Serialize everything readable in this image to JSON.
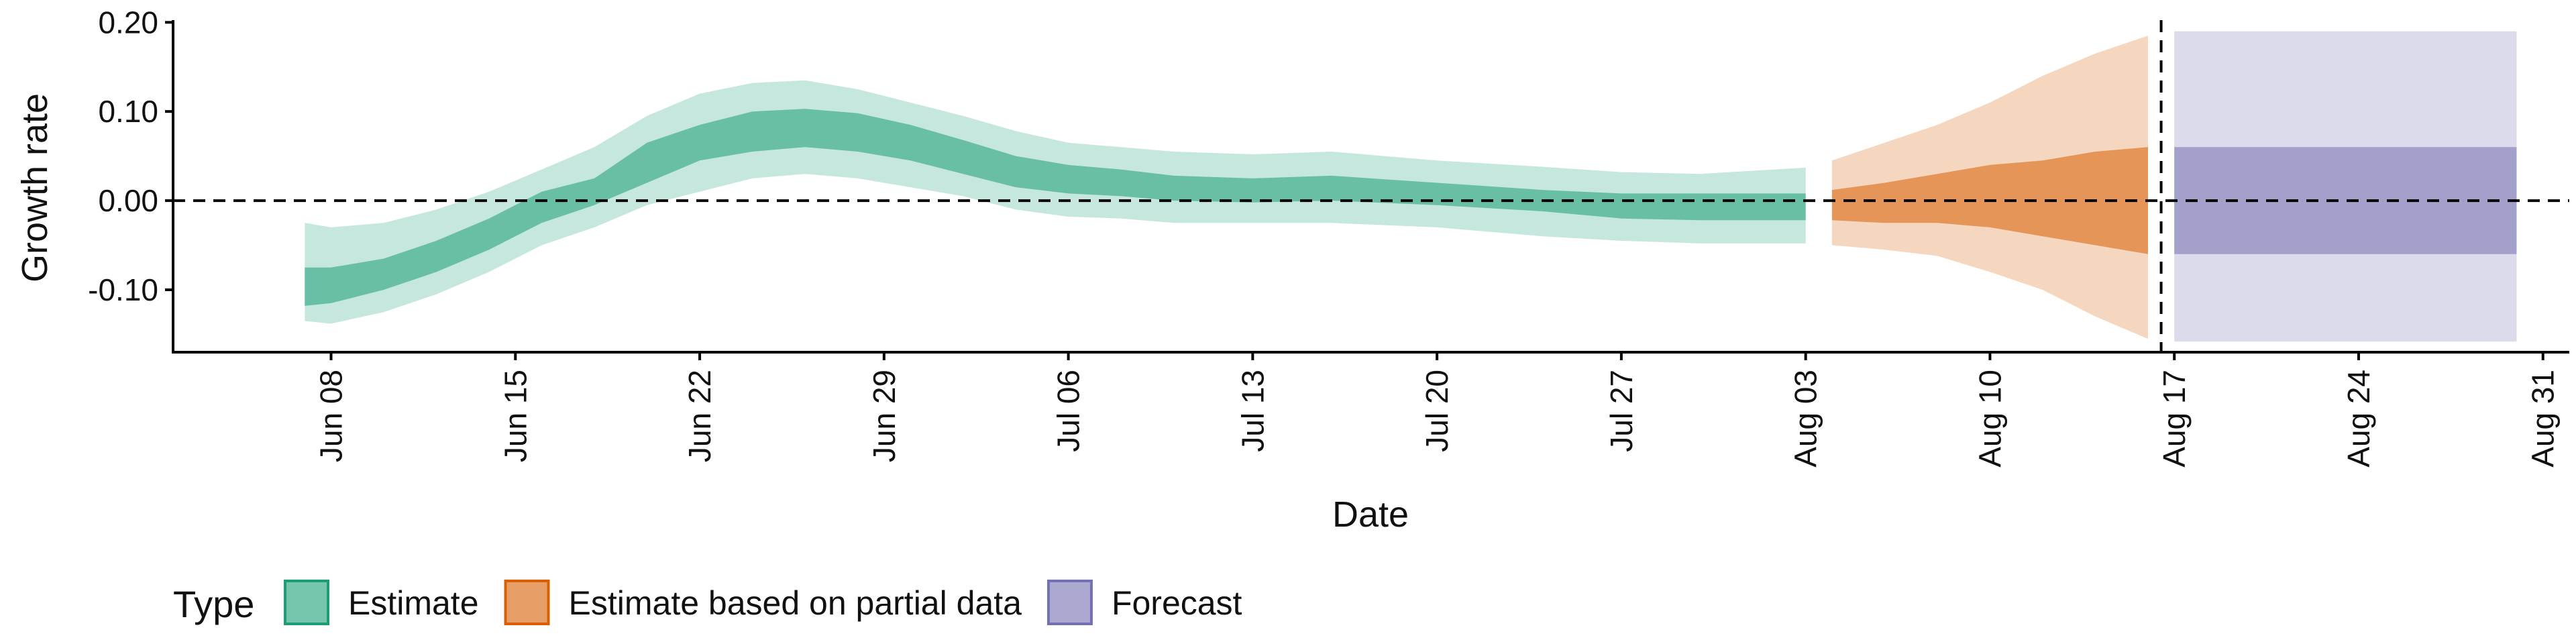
{
  "chart_data": {
    "type": "area",
    "xlabel": "Date",
    "ylabel": "Growth rate",
    "ylim": [
      -0.17,
      0.21
    ],
    "yticks": [
      -0.1,
      0.0,
      0.1,
      0.2
    ],
    "ytick_labels": [
      "-0.10",
      "0.00",
      "0.10",
      "0.20"
    ],
    "xticks": [
      "2020-06-08",
      "2020-06-15",
      "2020-06-22",
      "2020-06-29",
      "2020-07-06",
      "2020-07-13",
      "2020-07-20",
      "2020-07-27",
      "2020-08-03",
      "2020-08-10",
      "2020-08-17",
      "2020-08-24",
      "2020-08-31"
    ],
    "xtick_labels": [
      "Jun 08",
      "Jun 15",
      "Jun 22",
      "Jun 29",
      "Jul 06",
      "Jul 13",
      "Jul 20",
      "Jul 27",
      "Aug 03",
      "Aug 10",
      "Aug 17",
      "Aug 24",
      "Aug 31"
    ],
    "xlim": [
      "2020-06-02",
      "2020-09-01"
    ],
    "reference_hline": 0.0,
    "reference_vline": "2020-08-16",
    "grid": false,
    "legend": {
      "title": "Type",
      "position": "bottom-left",
      "entries": [
        {
          "label": "Estimate",
          "color": "#1b9e77"
        },
        {
          "label": "Estimate based on partial data",
          "color": "#d95f02"
        },
        {
          "label": "Forecast",
          "color": "#7570b3"
        }
      ]
    },
    "series": [
      {
        "name": "Estimate",
        "color": "#1b9e77",
        "points": [
          {
            "date": "2020-06-07",
            "lo90": -0.135,
            "lo50": -0.118,
            "hi50": -0.075,
            "hi90": -0.025
          },
          {
            "date": "2020-06-08",
            "lo90": -0.138,
            "lo50": -0.115,
            "hi50": -0.075,
            "hi90": -0.03
          },
          {
            "date": "2020-06-10",
            "lo90": -0.125,
            "lo50": -0.1,
            "hi50": -0.065,
            "hi90": -0.025
          },
          {
            "date": "2020-06-12",
            "lo90": -0.105,
            "lo50": -0.08,
            "hi50": -0.045,
            "hi90": -0.01
          },
          {
            "date": "2020-06-14",
            "lo90": -0.08,
            "lo50": -0.055,
            "hi50": -0.02,
            "hi90": 0.01
          },
          {
            "date": "2020-06-16",
            "lo90": -0.05,
            "lo50": -0.025,
            "hi50": 0.01,
            "hi90": 0.035
          },
          {
            "date": "2020-06-18",
            "lo90": -0.03,
            "lo50": -0.005,
            "hi50": 0.025,
            "hi90": 0.06
          },
          {
            "date": "2020-06-20",
            "lo90": -0.005,
            "lo50": 0.02,
            "hi50": 0.065,
            "hi90": 0.095
          },
          {
            "date": "2020-06-22",
            "lo90": 0.01,
            "lo50": 0.045,
            "hi50": 0.085,
            "hi90": 0.12
          },
          {
            "date": "2020-06-24",
            "lo90": 0.025,
            "lo50": 0.055,
            "hi50": 0.1,
            "hi90": 0.132
          },
          {
            "date": "2020-06-26",
            "lo90": 0.03,
            "lo50": 0.06,
            "hi50": 0.103,
            "hi90": 0.135
          },
          {
            "date": "2020-06-28",
            "lo90": 0.025,
            "lo50": 0.055,
            "hi50": 0.098,
            "hi90": 0.125
          },
          {
            "date": "2020-06-30",
            "lo90": 0.015,
            "lo50": 0.045,
            "hi50": 0.085,
            "hi90": 0.11
          },
          {
            "date": "2020-07-02",
            "lo90": 0.005,
            "lo50": 0.03,
            "hi50": 0.068,
            "hi90": 0.095
          },
          {
            "date": "2020-07-04",
            "lo90": -0.01,
            "lo50": 0.015,
            "hi50": 0.05,
            "hi90": 0.078
          },
          {
            "date": "2020-07-06",
            "lo90": -0.018,
            "lo50": 0.008,
            "hi50": 0.04,
            "hi90": 0.065
          },
          {
            "date": "2020-07-08",
            "lo90": -0.02,
            "lo50": 0.005,
            "hi50": 0.035,
            "hi90": 0.06
          },
          {
            "date": "2020-07-10",
            "lo90": -0.025,
            "lo50": 0.0,
            "hi50": 0.028,
            "hi90": 0.055
          },
          {
            "date": "2020-07-13",
            "lo90": -0.025,
            "lo50": -0.002,
            "hi50": 0.025,
            "hi90": 0.052
          },
          {
            "date": "2020-07-16",
            "lo90": -0.025,
            "lo50": 0.0,
            "hi50": 0.028,
            "hi90": 0.055
          },
          {
            "date": "2020-07-20",
            "lo90": -0.03,
            "lo50": -0.005,
            "hi50": 0.02,
            "hi90": 0.045
          },
          {
            "date": "2020-07-24",
            "lo90": -0.04,
            "lo50": -0.012,
            "hi50": 0.012,
            "hi90": 0.038
          },
          {
            "date": "2020-07-27",
            "lo90": -0.045,
            "lo50": -0.02,
            "hi50": 0.008,
            "hi90": 0.032
          },
          {
            "date": "2020-07-30",
            "lo90": -0.048,
            "lo50": -0.022,
            "hi50": 0.008,
            "hi90": 0.03
          },
          {
            "date": "2020-08-03",
            "lo90": -0.048,
            "lo50": -0.022,
            "hi50": 0.008,
            "hi90": 0.037
          }
        ]
      },
      {
        "name": "Estimate based on partial data",
        "color": "#d95f02",
        "points": [
          {
            "date": "2020-08-04",
            "lo90": -0.05,
            "lo50": -0.022,
            "hi50": 0.012,
            "hi90": 0.045
          },
          {
            "date": "2020-08-06",
            "lo90": -0.055,
            "lo50": -0.025,
            "hi50": 0.02,
            "hi90": 0.065
          },
          {
            "date": "2020-08-08",
            "lo90": -0.062,
            "lo50": -0.025,
            "hi50": 0.03,
            "hi90": 0.085
          },
          {
            "date": "2020-08-10",
            "lo90": -0.08,
            "lo50": -0.03,
            "hi50": 0.04,
            "hi90": 0.11
          },
          {
            "date": "2020-08-12",
            "lo90": -0.1,
            "lo50": -0.04,
            "hi50": 0.045,
            "hi90": 0.14
          },
          {
            "date": "2020-08-14",
            "lo90": -0.13,
            "lo50": -0.05,
            "hi50": 0.055,
            "hi90": 0.165
          },
          {
            "date": "2020-08-16",
            "lo90": -0.155,
            "lo50": -0.06,
            "hi50": 0.06,
            "hi90": 0.185
          }
        ]
      },
      {
        "name": "Forecast",
        "color": "#7570b3",
        "points": [
          {
            "date": "2020-08-17",
            "lo90": -0.158,
            "lo50": -0.06,
            "hi50": 0.06,
            "hi90": 0.19
          },
          {
            "date": "2020-08-30",
            "lo90": -0.158,
            "lo50": -0.06,
            "hi50": 0.06,
            "hi90": 0.19
          }
        ]
      }
    ]
  }
}
